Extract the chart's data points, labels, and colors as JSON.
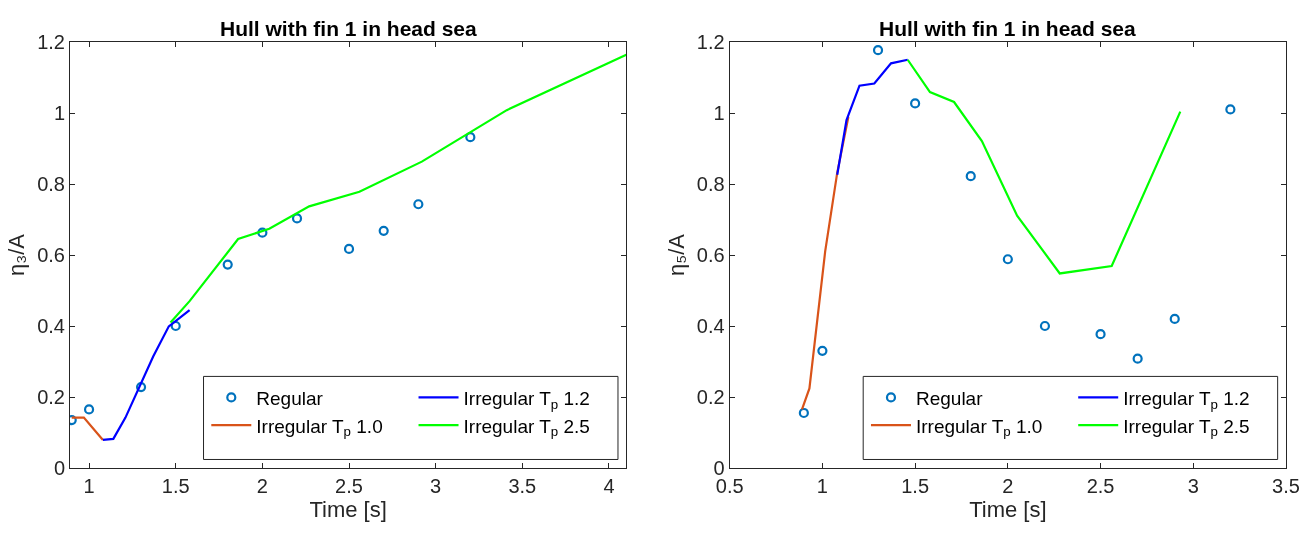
{
  "chart_data": [
    {
      "type": "line",
      "title": "Hull with fin 1 in head sea",
      "xlabel": "Time [s]",
      "ylabel": "η₃/A",
      "xlim": [
        0.89,
        4.1
      ],
      "xticks": [
        1,
        1.5,
        2,
        2.5,
        3,
        3.5,
        4
      ],
      "ylim": [
        0,
        1.2
      ],
      "yticks": [
        0,
        0.2,
        0.4,
        0.6,
        0.8,
        1,
        1.2
      ],
      "legend": "bottom right",
      "series": [
        {
          "name": "Regular",
          "type": "scatter",
          "marker": "circle",
          "color": "#0072bd",
          "x": [
            0.9,
            1.0,
            1.3,
            1.5,
            1.8,
            2.0,
            2.2,
            2.5,
            2.7,
            2.9,
            3.2
          ],
          "values": [
            0.135,
            0.165,
            0.228,
            0.4,
            0.573,
            0.663,
            0.703,
            0.617,
            0.668,
            0.743,
            0.932
          ]
        },
        {
          "name": "Irregular T$_{p}$ 1.0",
          "type": "line",
          "color": "#d95319",
          "x": [
            0.9,
            0.97,
            1.08
          ],
          "values": [
            0.142,
            0.142,
            0.079
          ]
        },
        {
          "name": "Irregular T$_{p}$ 1.2",
          "type": "line",
          "color": "#0000ff",
          "x": [
            1.08,
            1.14,
            1.21,
            1.37,
            1.46,
            1.58
          ],
          "values": [
            0.079,
            0.082,
            0.142,
            0.314,
            0.399,
            0.445
          ]
        },
        {
          "name": "Irregular T$_{p}$ 2.5",
          "type": "line",
          "color": "#00ff00",
          "x": [
            1.47,
            1.58,
            1.86,
            2.04,
            2.27,
            2.56,
            2.92,
            3.41,
            4.1
          ],
          "values": [
            0.41,
            0.47,
            0.645,
            0.674,
            0.737,
            0.778,
            0.863,
            1.008,
            1.164
          ]
        }
      ]
    },
    {
      "type": "line",
      "title": "Hull with fin 1 in head sea",
      "xlabel": "Time [s]",
      "ylabel": "η₅/A",
      "xlim": [
        0.5,
        3.5
      ],
      "xticks": [
        0.5,
        1,
        1.5,
        2,
        2.5,
        3,
        3.5
      ],
      "ylim": [
        0,
        1.2
      ],
      "yticks": [
        0,
        0.2,
        0.4,
        0.6,
        0.8,
        1,
        1.2
      ],
      "legend": "bottom right",
      "series": [
        {
          "name": "Regular",
          "type": "scatter",
          "marker": "circle",
          "color": "#0072bd",
          "x": [
            0.9,
            1.0,
            1.3,
            1.5,
            1.8,
            2.0,
            2.2,
            2.5,
            2.7,
            2.9,
            3.2
          ],
          "values": [
            0.155,
            0.33,
            1.177,
            1.027,
            0.822,
            0.588,
            0.4,
            0.377,
            0.308,
            0.42,
            1.01
          ]
        },
        {
          "name": "Irregular T$_{p}$ 1.0",
          "type": "line",
          "color": "#d95319",
          "x": [
            0.89,
            0.93,
            1.015,
            1.08,
            1.14
          ],
          "values": [
            0.165,
            0.224,
            0.61,
            0.832,
            0.989
          ]
        },
        {
          "name": "Irregular T$_{p}$ 1.2",
          "type": "line",
          "color": "#0000ff",
          "x": [
            1.08,
            1.13,
            1.2,
            1.28,
            1.37,
            1.46
          ],
          "values": [
            0.826,
            0.98,
            1.077,
            1.083,
            1.14,
            1.15
          ]
        },
        {
          "name": "Irregular T$_{p}$ 2.5",
          "type": "line",
          "color": "#00ff00",
          "x": [
            1.46,
            1.58,
            1.71,
            1.86,
            2.05,
            2.28,
            2.56,
            2.93
          ],
          "values": [
            1.15,
            1.059,
            1.031,
            0.921,
            0.711,
            0.548,
            0.569,
            1.004
          ]
        }
      ]
    }
  ]
}
